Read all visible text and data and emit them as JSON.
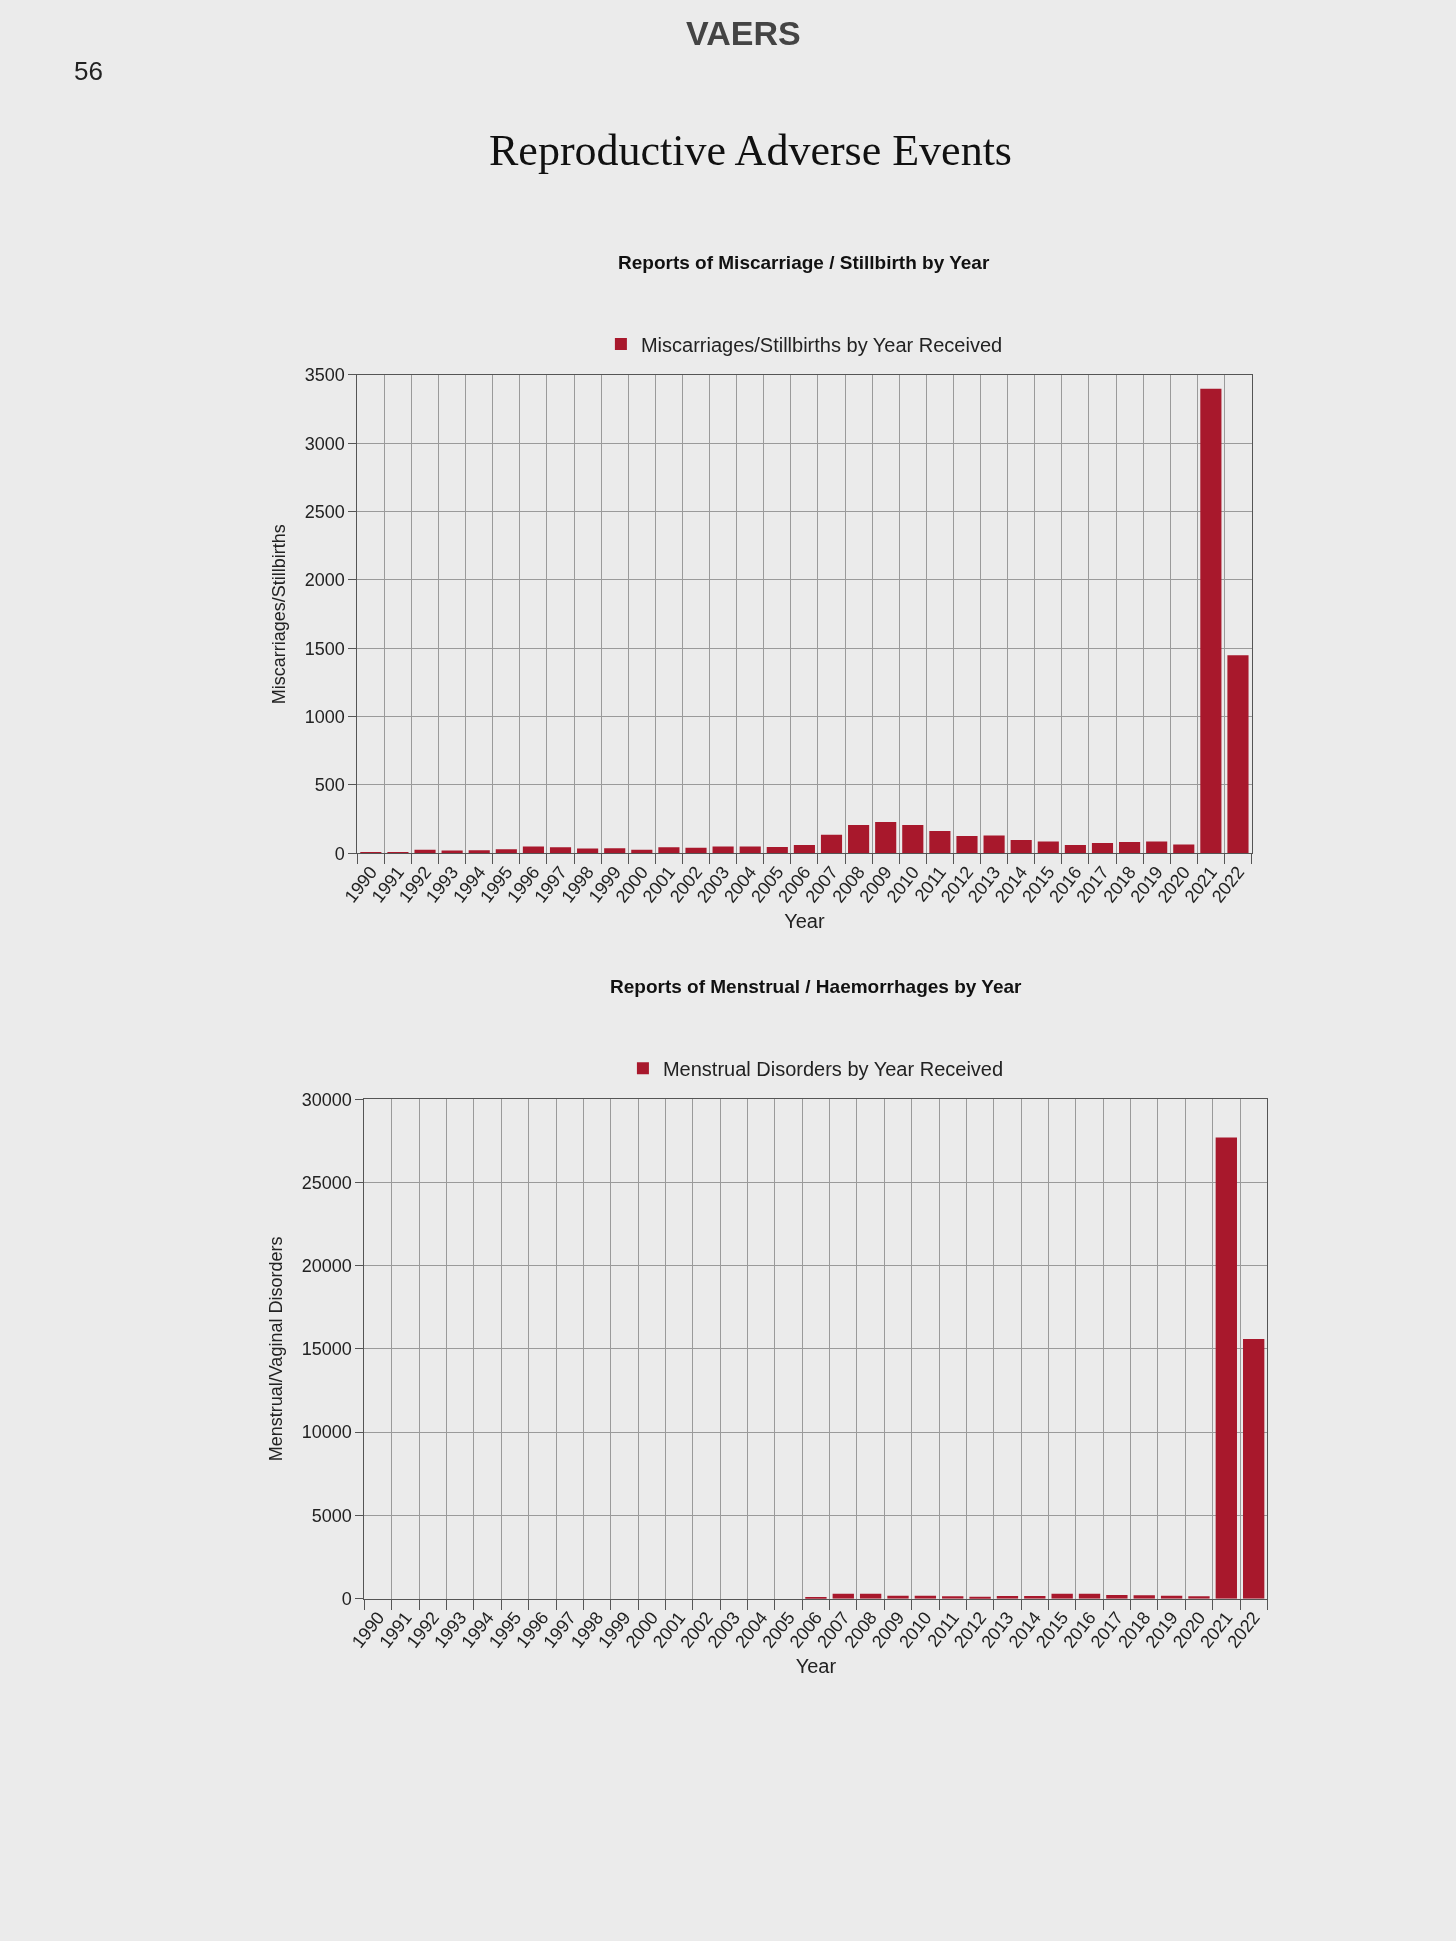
{
  "chart_data": [
    {
      "type": "other",
      "title": "Reproductive Adverse Events",
      "annotations": [
        "VAERS",
        "56"
      ]
    },
    {
      "type": "bar",
      "title": "Reports of Miscarriage / Stillbirth by Year",
      "xlabel": "Year",
      "ylabel": "Miscarriages/Stillbirths",
      "categories": [
        "1990",
        "1991",
        "1992",
        "1993",
        "1994",
        "1995",
        "1996",
        "1997",
        "1998",
        "1999",
        "2000",
        "2001",
        "2002",
        "2003",
        "2004",
        "2005",
        "2006",
        "2007",
        "2008",
        "2009",
        "2010",
        "2011",
        "2012",
        "2013",
        "2014",
        "2015",
        "2016",
        "2017",
        "2018",
        "2019",
        "2020",
        "2021",
        "2022"
      ],
      "series": [
        {
          "name": "Miscarriages/Stillbirths by Year Received",
          "color": "#a8182c",
          "values": [
            10,
            10,
            27,
            20,
            22,
            29,
            49,
            44,
            36,
            38,
            27,
            44,
            40,
            49,
            49,
            47,
            60,
            135,
            207,
            229,
            207,
            163,
            126,
            131,
            98,
            87,
            61,
            76,
            83,
            87,
            65,
            3400,
            1450
          ]
        }
      ],
      "ylim": [
        0,
        3500
      ],
      "yticks": [
        0,
        500,
        1000,
        1500,
        2000,
        2500,
        3000,
        3500
      ],
      "grid": true,
      "legend": "top"
    },
    {
      "type": "bar",
      "title": "Reports of Menstrual / Haemorrhages by Year",
      "xlabel": "Year",
      "ylabel": "Menstrual/Vaginal Disorders",
      "categories": [
        "1990",
        "1991",
        "1992",
        "1993",
        "1994",
        "1995",
        "1996",
        "1997",
        "1998",
        "1999",
        "2000",
        "2001",
        "2002",
        "2003",
        "2004",
        "2005",
        "2006",
        "2007",
        "2008",
        "2009",
        "2010",
        "2011",
        "2012",
        "2013",
        "2014",
        "2015",
        "2016",
        "2017",
        "2018",
        "2019",
        "2020",
        "2021",
        "2022"
      ],
      "series": [
        {
          "name": "Menstrual Disorders by Year Received",
          "color": "#a8182c",
          "values": [
            0,
            0,
            0,
            0,
            0,
            0,
            0,
            0,
            0,
            0,
            0,
            0,
            0,
            0,
            0,
            0,
            100,
            300,
            300,
            180,
            170,
            150,
            110,
            160,
            160,
            300,
            300,
            220,
            200,
            170,
            150,
            27700,
            15600
          ]
        }
      ],
      "ylim": [
        0,
        30000
      ],
      "yticks": [
        0,
        5000,
        10000,
        15000,
        20000,
        25000,
        30000
      ],
      "grid": true,
      "legend": "top"
    }
  ]
}
